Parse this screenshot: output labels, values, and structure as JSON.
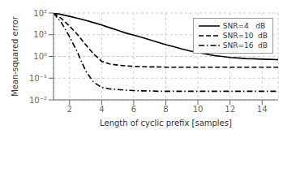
{
  "chart_data": {
    "type": "line",
    "title": "",
    "xlabel": "Length of cyclic prefix  [samples]",
    "ylabel": "Mean-squared error",
    "log": "y",
    "grid": true,
    "legend": "upper right",
    "xlim": [
      1,
      15
    ],
    "xticks": [
      2,
      4,
      6,
      8,
      10,
      12,
      14
    ],
    "ylim": [
      0.01,
      100
    ],
    "yticks": [
      {
        "value": 0.01,
        "label": "10⁻²"
      },
      {
        "value": 0.1,
        "label": "10⁻¹"
      },
      {
        "value": 1,
        "label": "10⁰"
      },
      {
        "value": 10,
        "label": "10¹"
      },
      {
        "value": 100,
        "label": "10²"
      }
    ],
    "x": [
      1,
      1.5,
      2,
      2.5,
      3,
      3.5,
      4,
      4.5,
      5,
      5.5,
      6,
      6.5,
      7,
      7.5,
      8,
      8.5,
      9,
      9.5,
      10,
      10.5,
      11,
      11.5,
      12,
      12.5,
      13,
      13.5,
      14,
      14.5,
      15
    ],
    "series": [
      {
        "name": "SNR=4   dB",
        "color": "black",
        "line_style": "solid",
        "values": [
          100,
          85,
          70,
          57,
          46,
          36,
          28,
          21,
          16,
          12,
          9.5,
          7.5,
          5.8,
          4.5,
          3.5,
          2.8,
          2.2,
          1.8,
          1.5,
          1.3,
          1.1,
          1.0,
          0.9,
          0.85,
          0.8,
          0.78,
          0.75,
          0.73,
          0.71
        ]
      },
      {
        "name": "SNR=10  dB",
        "color": "black",
        "line_style": "dashed",
        "values": [
          100,
          55,
          25,
          10,
          3.5,
          1.3,
          0.6,
          0.45,
          0.4,
          0.37,
          0.35,
          0.34,
          0.33,
          0.33,
          0.32,
          0.32,
          0.32,
          0.32,
          0.32,
          0.32,
          0.32,
          0.32,
          0.32,
          0.32,
          0.32,
          0.32,
          0.32,
          0.32,
          0.32
        ]
      },
      {
        "name": "SNR=16  dB",
        "color": "black",
        "line_style": "dashdot",
        "values": [
          100,
          35,
          8.0,
          1.5,
          0.22,
          0.065,
          0.038,
          0.032,
          0.03,
          0.028,
          0.027,
          0.026,
          0.026,
          0.025,
          0.025,
          0.025,
          0.025,
          0.025,
          0.025,
          0.025,
          0.025,
          0.025,
          0.025,
          0.025,
          0.025,
          0.025,
          0.025,
          0.025,
          0.025
        ]
      }
    ]
  }
}
